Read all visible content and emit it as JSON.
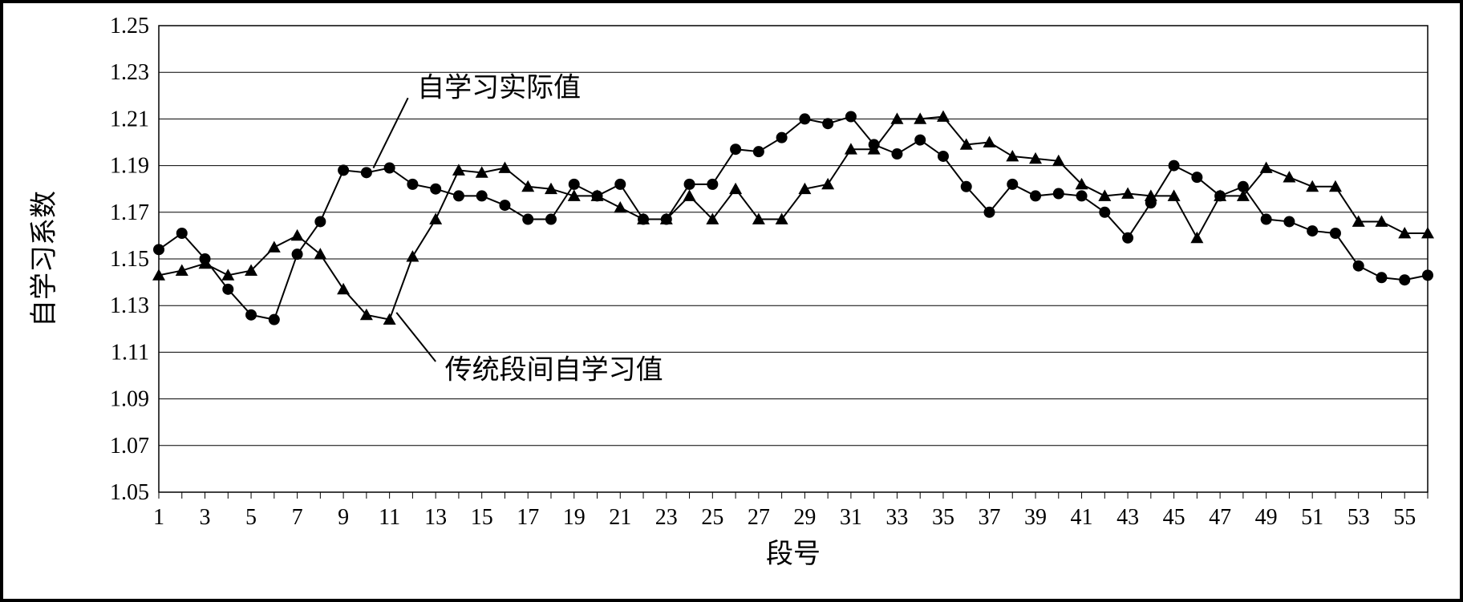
{
  "chart": {
    "type": "line",
    "background_color": "#ffffff",
    "frame_border_color": "#000000",
    "grid_color": "#000000",
    "axis_color": "#000000",
    "ylabel": "自学习系数",
    "xlabel": "段号",
    "label_fontsize": 34,
    "tick_fontsize": 28,
    "legend_fontsize": 34,
    "ylim": [
      1.05,
      1.25
    ],
    "ytick_step": 0.02,
    "yticks": [
      "1.05",
      "1.07",
      "1.09",
      "1.11",
      "1.13",
      "1.15",
      "1.17",
      "1.19",
      "1.21",
      "1.23",
      "1.25"
    ],
    "xlim": [
      1,
      56
    ],
    "xtick_step": 2,
    "xticks": [
      "1",
      "3",
      "5",
      "7",
      "9",
      "11",
      "13",
      "15",
      "17",
      "19",
      "21",
      "23",
      "25",
      "27",
      "29",
      "31",
      "33",
      "35",
      "37",
      "39",
      "41",
      "43",
      "45",
      "47",
      "49",
      "51",
      "53",
      "55"
    ],
    "x_all": [
      1,
      2,
      3,
      4,
      5,
      6,
      7,
      8,
      9,
      10,
      11,
      12,
      13,
      14,
      15,
      16,
      17,
      18,
      19,
      20,
      21,
      22,
      23,
      24,
      25,
      26,
      27,
      28,
      29,
      30,
      31,
      32,
      33,
      34,
      35,
      36,
      37,
      38,
      39,
      40,
      41,
      42,
      43,
      44,
      45,
      46,
      47,
      48,
      49,
      50,
      51,
      52,
      53,
      54,
      55,
      56
    ],
    "line_width": 2,
    "marker_size": 7,
    "series": [
      {
        "key": "actual",
        "label": "自学习实际值",
        "marker": "circle",
        "color": "#000000",
        "y": [
          1.154,
          1.161,
          1.15,
          1.137,
          1.126,
          1.124,
          1.152,
          1.166,
          1.188,
          1.187,
          1.189,
          1.182,
          1.18,
          1.177,
          1.177,
          1.173,
          1.167,
          1.167,
          1.182,
          1.177,
          1.182,
          1.167,
          1.167,
          1.182,
          1.182,
          1.197,
          1.196,
          1.202,
          1.21,
          1.208,
          1.211,
          1.199,
          1.195,
          1.201,
          1.194,
          1.181,
          1.17,
          1.182,
          1.177,
          1.178,
          1.177,
          1.17,
          1.159,
          1.174,
          1.19,
          1.185,
          1.177,
          1.181,
          1.167,
          1.166,
          1.162,
          1.161,
          1.147,
          1.142,
          1.141,
          1.143
        ]
      },
      {
        "key": "traditional",
        "label": "传统段间自学习值",
        "marker": "triangle",
        "color": "#000000",
        "y": [
          1.143,
          1.145,
          1.148,
          1.143,
          1.145,
          1.155,
          1.16,
          1.152,
          1.137,
          1.126,
          1.124,
          1.151,
          1.167,
          1.188,
          1.187,
          1.189,
          1.181,
          1.18,
          1.177,
          1.177,
          1.172,
          1.167,
          1.167,
          1.177,
          1.167,
          1.18,
          1.167,
          1.167,
          1.18,
          1.182,
          1.197,
          1.197,
          1.21,
          1.21,
          1.211,
          1.199,
          1.2,
          1.194,
          1.193,
          1.192,
          1.182,
          1.177,
          1.178,
          1.177,
          1.177,
          1.159,
          1.177,
          1.177,
          1.189,
          1.185,
          1.181,
          1.181,
          1.166,
          1.166,
          1.161,
          1.161
        ]
      }
    ],
    "legend": {
      "items": [
        {
          "series_key": "actual",
          "text": "自学习实际值",
          "line_from": [
            10.3,
            1.189
          ],
          "line_to": [
            11.8,
            1.219
          ],
          "text_at": [
            12.2,
            1.223
          ]
        },
        {
          "series_key": "traditional",
          "text": "传统段间自学习值",
          "line_from": [
            11.3,
            1.127
          ],
          "line_to": [
            13.0,
            1.106
          ],
          "text_at": [
            13.4,
            1.102
          ]
        }
      ]
    }
  }
}
